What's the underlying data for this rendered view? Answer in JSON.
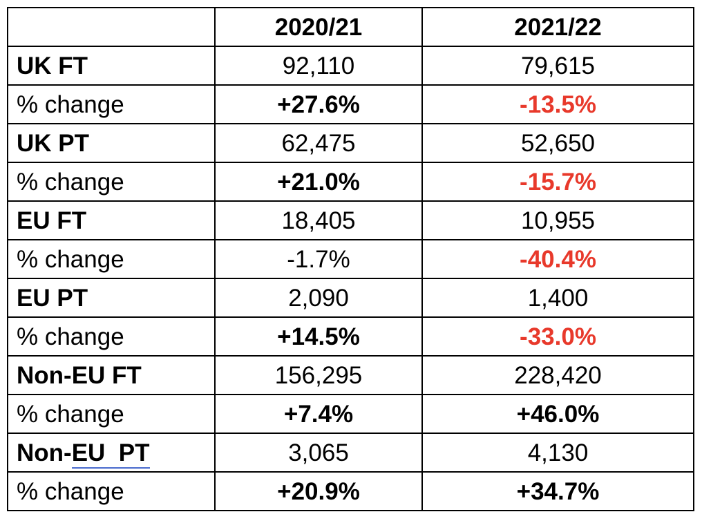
{
  "table": {
    "headers": [
      "",
      "2020/21",
      "2021/22"
    ],
    "rows": [
      {
        "label": "UK FT",
        "label_bold": true,
        "values": [
          {
            "text": "92,110",
            "style": "plain"
          },
          {
            "text": "79,615",
            "style": "plain"
          }
        ]
      },
      {
        "label": "% change",
        "label_bold": false,
        "values": [
          {
            "text": "+27.6%",
            "style": "bold"
          },
          {
            "text": "-13.5%",
            "style": "negative"
          }
        ]
      },
      {
        "label": "UK PT",
        "label_bold": true,
        "values": [
          {
            "text": "62,475",
            "style": "plain"
          },
          {
            "text": "52,650",
            "style": "plain"
          }
        ]
      },
      {
        "label": "% change",
        "label_bold": false,
        "values": [
          {
            "text": "+21.0%",
            "style": "bold"
          },
          {
            "text": "-15.7%",
            "style": "negative"
          }
        ]
      },
      {
        "label": "EU FT",
        "label_bold": true,
        "values": [
          {
            "text": "18,405",
            "style": "plain"
          },
          {
            "text": "10,955",
            "style": "plain"
          }
        ]
      },
      {
        "label": "% change",
        "label_bold": false,
        "values": [
          {
            "text": "-1.7%",
            "style": "plain"
          },
          {
            "text": "-40.4%",
            "style": "negative"
          }
        ]
      },
      {
        "label": "EU PT",
        "label_bold": true,
        "values": [
          {
            "text": "2,090",
            "style": "plain"
          },
          {
            "text": "1,400",
            "style": "plain"
          }
        ]
      },
      {
        "label": "% change",
        "label_bold": false,
        "values": [
          {
            "text": "+14.5%",
            "style": "bold"
          },
          {
            "text": "-33.0%",
            "style": "negative"
          }
        ]
      },
      {
        "label": "Non-EU FT",
        "label_bold": true,
        "values": [
          {
            "text": "156,295",
            "style": "plain"
          },
          {
            "text": "228,420",
            "style": "plain"
          }
        ]
      },
      {
        "label": "% change",
        "label_bold": false,
        "values": [
          {
            "text": "+7.4%",
            "style": "bold"
          },
          {
            "text": "+46.0%",
            "style": "bold"
          }
        ]
      },
      {
        "label": "Non-EU  PT",
        "label_bold": true,
        "label_parts": [
          "Non-",
          "EU  PT"
        ],
        "values": [
          {
            "text": "3,065",
            "style": "plain"
          },
          {
            "text": "4,130",
            "style": "plain"
          }
        ]
      },
      {
        "label": "% change",
        "label_bold": false,
        "values": [
          {
            "text": "+20.9%",
            "style": "bold"
          },
          {
            "text": "+34.7%",
            "style": "bold"
          }
        ]
      }
    ]
  },
  "colors": {
    "negative": "#e8392b",
    "spellcheck_underline": "#3b5fc9"
  }
}
